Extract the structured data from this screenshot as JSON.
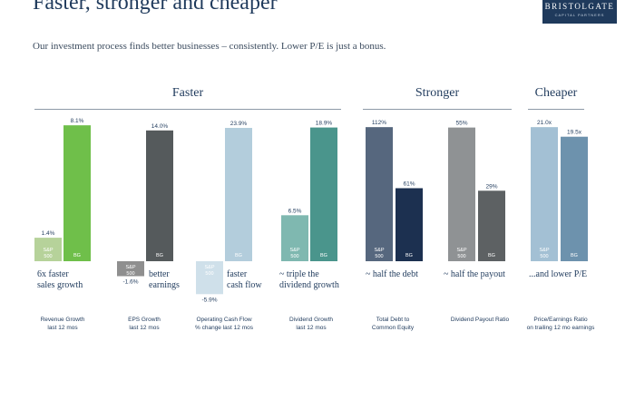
{
  "title": "Faster, stronger and cheaper",
  "subtitle": "Our investment process finds better businesses – consistently. Lower P/E is just a bonus.",
  "logo": {
    "line1": "BRISTOLGATE",
    "line2": "CAPITAL PARTNERS"
  },
  "groups": [
    {
      "label": "Faster"
    },
    {
      "label": "Stronger"
    },
    {
      "label": "Cheaper"
    }
  ],
  "colors": {
    "navy": "#1f3a5c",
    "sp_sales": "#b6d29a",
    "bg_sales": "#6fbf4a",
    "sp_eps": "#8f8f8f",
    "bg_eps": "#555a5c",
    "sp_cash": "#cfe0ea",
    "bg_cash": "#b3cddc",
    "sp_div": "#7fb8b0",
    "bg_div": "#4a958c",
    "sp_debt": "#56677e",
    "bg_debt": "#1c3050",
    "sp_payout": "#8f9294",
    "bg_payout": "#5d6163",
    "sp_pe": "#a3c0d4",
    "bg_pe": "#6d92ad"
  },
  "chart_data": {
    "type": "bar",
    "series_labels": {
      "sp_line1": "S&P",
      "sp_line2": "500",
      "bg": "BG"
    },
    "metrics": [
      {
        "group": "Faster",
        "label_line1": "Revenue Growth",
        "label_line2": "last 12 mos",
        "sp": 1.4,
        "bg": 8.1,
        "sp_label": "1.4%",
        "bg_label": "8.1%",
        "annotation_line1": "6x faster",
        "annotation_line2": "sales growth"
      },
      {
        "group": "Faster",
        "label_line1": "EPS Growth",
        "label_line2": "last 12 mos",
        "sp": -1.6,
        "bg": 14.0,
        "sp_label": "-1.6%",
        "bg_label": "14.0%",
        "annotation_line1": "better",
        "annotation_line2": "earnings"
      },
      {
        "group": "Faster",
        "label_line1": "Operating Cash Flow",
        "label_line2": "% change last 12 mos",
        "sp": -5.9,
        "bg": 23.9,
        "sp_label": "-5.9%",
        "bg_label": "23.9%",
        "annotation_line1": "faster",
        "annotation_line2": "cash flow"
      },
      {
        "group": "Faster",
        "label_line1": "Dividend Growth",
        "label_line2": "last 12 mos",
        "sp": 6.5,
        "bg": 18.9,
        "sp_label": "6.5%",
        "bg_label": "18.9%",
        "annotation_line1": "~ triple the",
        "annotation_line2": "dividend growth"
      },
      {
        "group": "Stronger",
        "label_line1": "Total Debt to",
        "label_line2": "Common Equity",
        "sp": 112,
        "bg": 61,
        "sp_label": "112%",
        "bg_label": "61%",
        "annotation_line1": "~ half the debt",
        "annotation_line2": ""
      },
      {
        "group": "Stronger",
        "label_line1": "Dividend  Payout Ratio",
        "label_line2": "",
        "sp": 55,
        "bg": 29,
        "sp_label": "55%",
        "bg_label": "29%",
        "annotation_line1": "~ half the payout",
        "annotation_line2": ""
      },
      {
        "group": "Cheaper",
        "label_line1": "Price/Earnings Ratio",
        "label_line2": "on trailing 12 mo earnings",
        "sp": 21.0,
        "bg": 19.5,
        "sp_label": "21.0x",
        "bg_label": "19.5x",
        "annotation_line1": "...and lower P/E",
        "annotation_line2": ""
      }
    ],
    "legend": "none",
    "grid": false
  }
}
